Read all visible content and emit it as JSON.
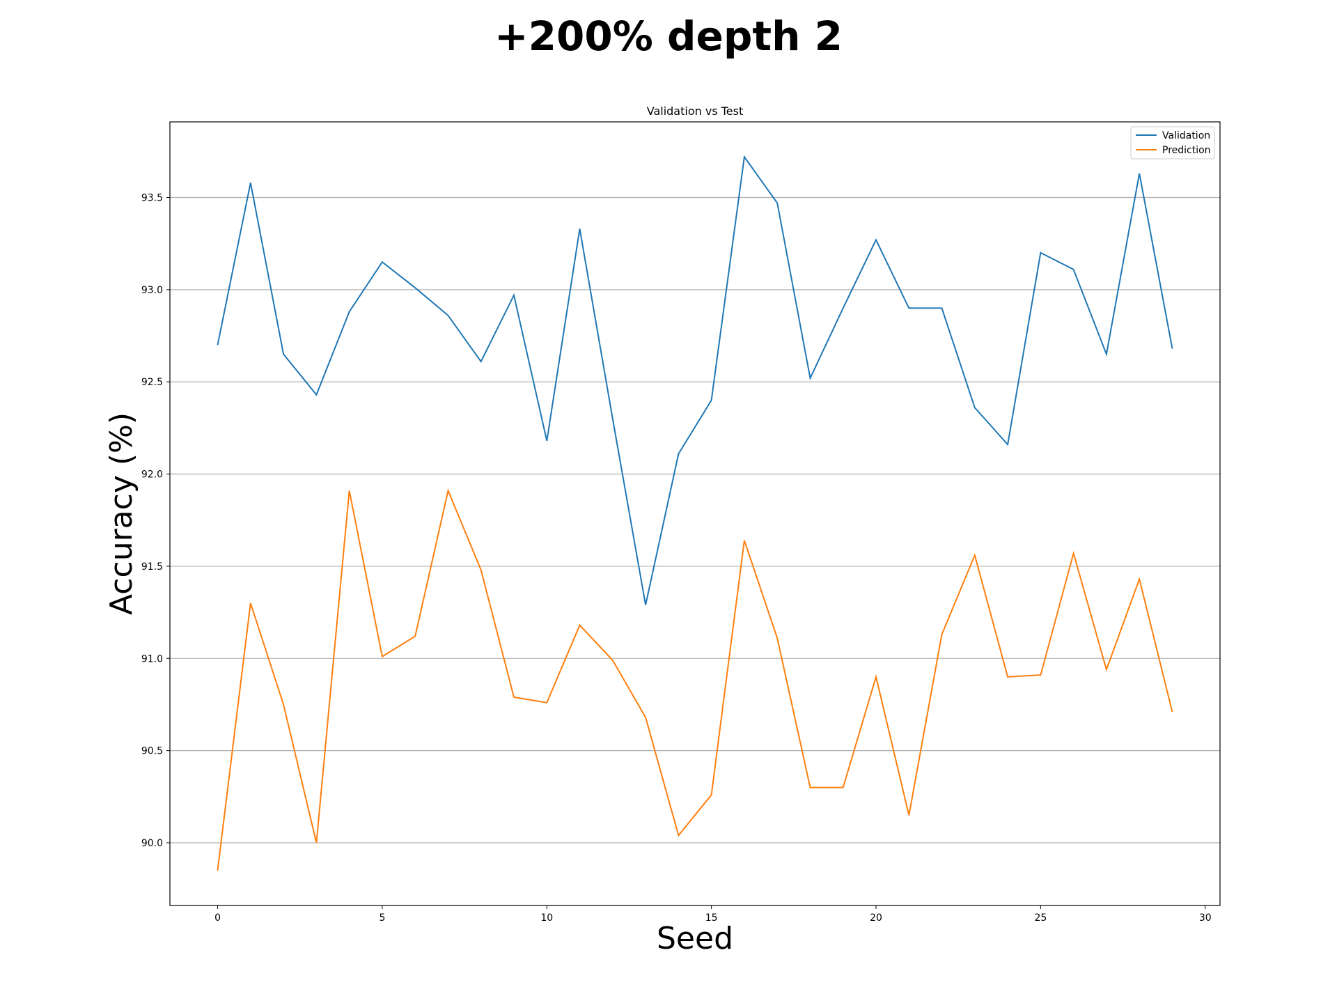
{
  "figure": {
    "title": "+200% depth 2"
  },
  "chart_data": {
    "type": "line",
    "title": "Validation vs Test",
    "xlabel": "Seed",
    "ylabel": "Accuracy (%)",
    "xlim": [
      -1.45,
      30.45
    ],
    "ylim": [
      89.66,
      93.91
    ],
    "xticks": [
      0,
      5,
      10,
      15,
      20,
      25,
      30
    ],
    "xtick_labels": [
      "0",
      "5",
      "10",
      "15",
      "20",
      "25",
      "30"
    ],
    "yticks": [
      90.0,
      90.5,
      91.0,
      91.5,
      92.0,
      92.5,
      93.0,
      93.5
    ],
    "ytick_labels": [
      "90.0",
      "90.5",
      "91.0",
      "91.5",
      "92.0",
      "92.5",
      "93.0",
      "93.5"
    ],
    "grid": "horizontal",
    "legend": "top-right",
    "x": [
      0,
      1,
      2,
      3,
      4,
      5,
      6,
      7,
      8,
      9,
      10,
      11,
      12,
      13,
      14,
      15,
      16,
      17,
      18,
      19,
      20,
      21,
      22,
      23,
      24,
      25,
      26,
      27,
      28,
      29
    ],
    "series": [
      {
        "name": "Validation",
        "color": "#1f77b4",
        "values": [
          92.7,
          93.58,
          92.65,
          92.43,
          92.88,
          93.15,
          93.01,
          92.86,
          92.61,
          92.97,
          92.18,
          93.33,
          92.3,
          91.29,
          92.11,
          92.4,
          93.72,
          93.47,
          92.52,
          92.9,
          93.27,
          92.9,
          92.9,
          92.36,
          92.16,
          93.2,
          93.11,
          92.65,
          93.63,
          92.68
        ]
      },
      {
        "name": "Prediction",
        "color": "#ff7f0e",
        "values": [
          89.85,
          91.3,
          90.75,
          90.0,
          91.91,
          91.01,
          91.12,
          91.91,
          91.48,
          90.79,
          90.76,
          91.18,
          90.99,
          90.68,
          90.04,
          90.26,
          91.64,
          91.11,
          90.3,
          90.3,
          90.9,
          90.15,
          91.13,
          91.56,
          90.9,
          90.91,
          91.57,
          90.94,
          91.43,
          90.71
        ]
      }
    ]
  }
}
